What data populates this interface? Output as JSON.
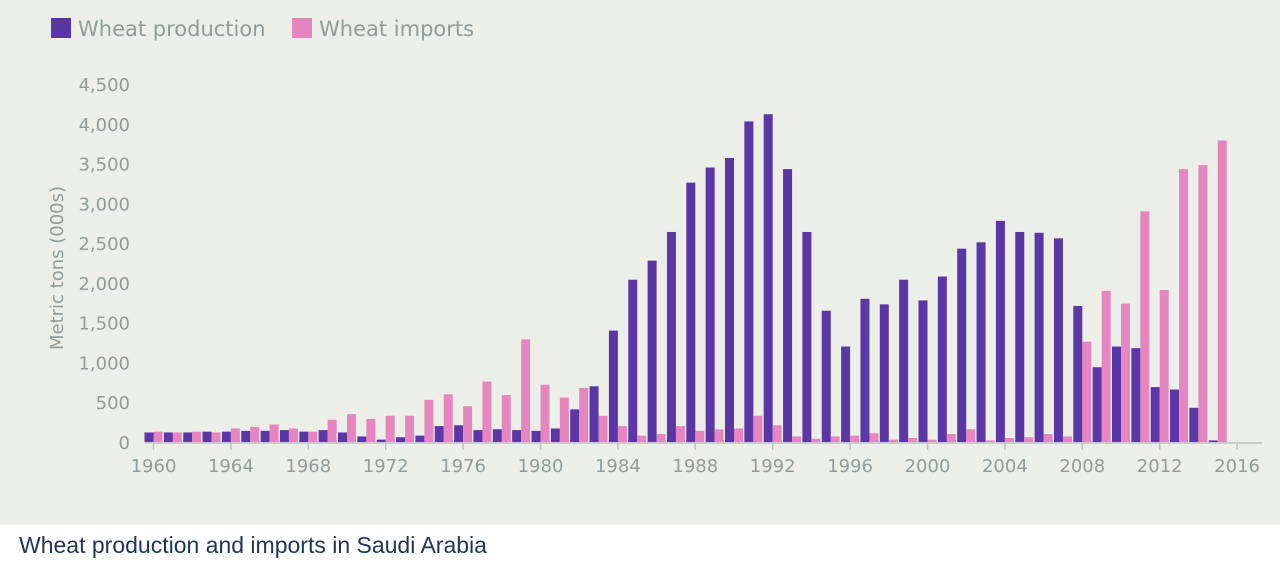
{
  "chart_data": {
    "type": "bar",
    "title": "",
    "xlabel": "",
    "ylabel": "Metric tons (000s)",
    "ylim": [
      0,
      4500
    ],
    "yticks": [
      "0",
      "500",
      "1,000",
      "1,500",
      "2,000",
      "2,500",
      "3,000",
      "3,500",
      "4,000",
      "4,500"
    ],
    "xticks": [
      "1960",
      "1964",
      "1968",
      "1972",
      "1976",
      "1980",
      "1984",
      "1988",
      "1992",
      "1996",
      "2000",
      "2004",
      "2008",
      "2012",
      "2016"
    ],
    "categories": [
      1960,
      1961,
      1962,
      1963,
      1964,
      1965,
      1966,
      1967,
      1968,
      1969,
      1970,
      1971,
      1972,
      1973,
      1974,
      1975,
      1976,
      1977,
      1978,
      1979,
      1980,
      1981,
      1982,
      1983,
      1984,
      1985,
      1986,
      1987,
      1988,
      1989,
      1990,
      1991,
      1992,
      1993,
      1994,
      1995,
      1996,
      1997,
      1998,
      1999,
      2000,
      2001,
      2002,
      2003,
      2004,
      2005,
      2006,
      2007,
      2008,
      2009,
      2010,
      2011,
      2012,
      2013,
      2014,
      2015
    ],
    "series": [
      {
        "name": "Wheat production",
        "color": "#5b36a5",
        "values": [
          120,
          120,
          120,
          130,
          130,
          140,
          140,
          150,
          130,
          150,
          120,
          70,
          30,
          60,
          80,
          200,
          210,
          150,
          160,
          150,
          140,
          170,
          410,
          700,
          1400,
          2040,
          2280,
          2640,
          3260,
          3450,
          3570,
          4030,
          4120,
          3430,
          2640,
          1650,
          1200,
          1800,
          1730,
          2040,
          1780,
          2080,
          2430,
          2510,
          2780,
          2640,
          2630,
          2560,
          1710,
          940,
          1200,
          1180,
          690,
          660,
          430,
          20
        ]
      },
      {
        "name": "Wheat imports",
        "color": "#e586c0",
        "values": [
          130,
          120,
          130,
          120,
          170,
          190,
          220,
          170,
          130,
          280,
          350,
          290,
          330,
          330,
          530,
          600,
          450,
          760,
          590,
          1290,
          720,
          560,
          680,
          330,
          200,
          80,
          100,
          200,
          140,
          160,
          170,
          330,
          210,
          70,
          40,
          70,
          80,
          110,
          30,
          50,
          30,
          100,
          160,
          20,
          50,
          60,
          100,
          70,
          1260,
          1900,
          1740,
          2900,
          1910,
          3430,
          3480,
          3790
        ]
      }
    ]
  },
  "caption": "Wheat production and imports in Saudi Arabia"
}
